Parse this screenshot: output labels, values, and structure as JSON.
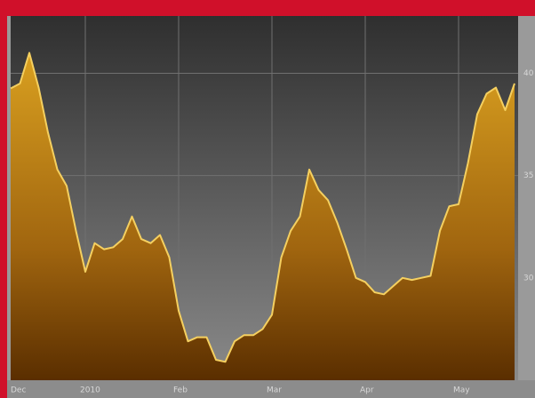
{
  "chart_data": {
    "type": "area",
    "categories": [
      "Dec",
      null,
      null,
      null,
      null,
      null,
      null,
      null,
      "2010",
      null,
      null,
      null,
      null,
      null,
      null,
      null,
      null,
      null,
      "Feb",
      null,
      null,
      null,
      null,
      null,
      null,
      null,
      null,
      null,
      "Mar",
      null,
      null,
      null,
      null,
      null,
      null,
      null,
      null,
      null,
      "Apr",
      null,
      null,
      null,
      null,
      null,
      null,
      null,
      null,
      null,
      "May",
      null,
      null,
      null,
      null,
      null,
      null
    ],
    "values": [
      39.26,
      39.5,
      41.0,
      39.3,
      37.1,
      35.3,
      34.5,
      32.3,
      30.3,
      31.7,
      31.4,
      31.5,
      31.9,
      33.0,
      31.9,
      31.7,
      32.1,
      31.0,
      28.4,
      26.9,
      27.1,
      27.1,
      26.0,
      25.9,
      26.9,
      27.2,
      27.2,
      27.5,
      28.2,
      31.0,
      32.3,
      33.0,
      35.3,
      34.3,
      33.8,
      32.7,
      31.4,
      30.0,
      29.8,
      29.3,
      29.2,
      29.6,
      30.0,
      29.9,
      30.0,
      30.1,
      32.3,
      33.5,
      33.6,
      35.6,
      38.0,
      39.0,
      39.3,
      38.2,
      39.5
    ],
    "color": "#f5d060",
    "ylim": [
      25,
      42.8
    ],
    "yticks": [
      30,
      35,
      40
    ],
    "grid": true
  }
}
